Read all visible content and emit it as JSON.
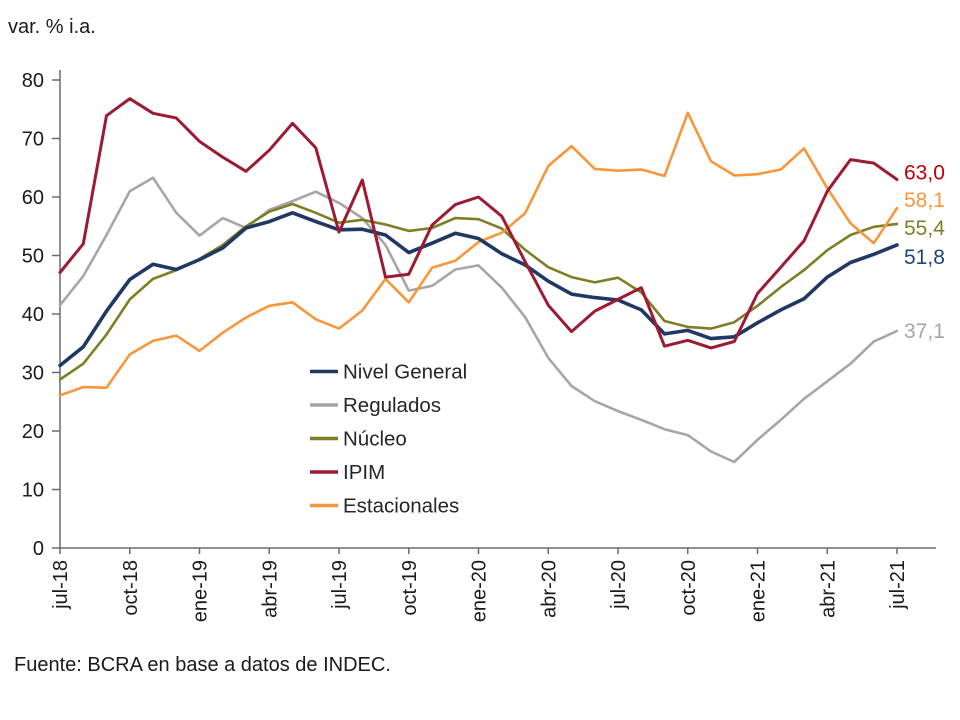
{
  "header": {
    "title": "var. % i.a."
  },
  "footer": {
    "source": "Fuente: BCRA en base a datos de INDEC."
  },
  "chart_data": {
    "type": "line",
    "title": "var. % i.a.",
    "ylabel": "",
    "xlabel": "",
    "ylim": [
      0,
      80
    ],
    "y_ticks": [
      0,
      10,
      20,
      30,
      40,
      50,
      60,
      70,
      80
    ],
    "grid": false,
    "legend_position": "inside-center-left",
    "x": [
      "jul-18",
      "ago-18",
      "sep-18",
      "oct-18",
      "nov-18",
      "dic-18",
      "ene-19",
      "feb-19",
      "mar-19",
      "abr-19",
      "may-19",
      "jun-19",
      "jul-19",
      "ago-19",
      "sep-19",
      "oct-19",
      "nov-19",
      "dic-19",
      "ene-20",
      "feb-20",
      "mar-20",
      "abr-20",
      "may-20",
      "jun-20",
      "jul-20",
      "ago-20",
      "sep-20",
      "oct-20",
      "nov-20",
      "dic-20",
      "ene-21",
      "feb-21",
      "mar-21",
      "abr-21",
      "may-21",
      "jun-21",
      "jul-21"
    ],
    "x_tick_labels": [
      "jul-18",
      "oct-18",
      "ene-19",
      "abr-19",
      "jul-19",
      "oct-19",
      "ene-20",
      "abr-20",
      "jul-20",
      "oct-20",
      "ene-21",
      "abr-21",
      "jul-21"
    ],
    "series": [
      {
        "name": "Nivel General",
        "color": "#1F3864",
        "label_color": "#1F4577",
        "end_label": "51,8",
        "values": [
          31.2,
          34.4,
          40.5,
          45.9,
          48.5,
          47.6,
          49.3,
          51.3,
          54.7,
          55.8,
          57.3,
          55.8,
          54.4,
          54.5,
          53.5,
          50.5,
          52.1,
          53.8,
          52.9,
          50.3,
          48.4,
          45.6,
          43.4,
          42.8,
          42.4,
          40.7,
          36.6,
          37.2,
          35.8,
          36.1,
          38.5,
          40.7,
          42.6,
          46.3,
          48.8,
          50.2,
          51.8
        ]
      },
      {
        "name": "Regulados",
        "color": "#A6A6A6",
        "label_color": "#A6A6A6",
        "end_label": "37,1",
        "values": [
          41.5,
          46.5,
          53.5,
          61.0,
          63.3,
          57.3,
          53.4,
          56.4,
          54.7,
          57.8,
          59.3,
          60.9,
          59.0,
          56.4,
          51.8,
          44.0,
          44.8,
          47.6,
          48.3,
          44.5,
          39.5,
          32.5,
          27.7,
          25.1,
          23.4,
          21.9,
          20.3,
          19.3,
          16.5,
          14.7,
          18.5,
          21.9,
          25.5,
          28.5,
          31.5,
          35.3,
          37.1
        ]
      },
      {
        "name": "Núcleo",
        "color": "#7E7F25",
        "label_color": "#7E7F25",
        "end_label": "55,4",
        "values": [
          28.8,
          31.5,
          36.5,
          42.5,
          46.0,
          47.5,
          49.4,
          51.8,
          55.0,
          57.5,
          58.8,
          57.3,
          55.6,
          56.1,
          55.3,
          54.2,
          54.7,
          56.4,
          56.2,
          54.6,
          51.0,
          48.0,
          46.3,
          45.4,
          46.2,
          43.7,
          38.8,
          37.8,
          37.5,
          38.6,
          41.4,
          44.6,
          47.5,
          50.9,
          53.5,
          54.9,
          55.4
        ]
      },
      {
        "name": "IPIM",
        "color": "#9C1B33",
        "label_color": "#C00000",
        "end_label": "63,0",
        "values": [
          47.1,
          52.0,
          73.9,
          76.8,
          74.3,
          73.5,
          69.5,
          66.8,
          64.4,
          68.0,
          72.6,
          68.4,
          54.0,
          62.9,
          46.3,
          46.8,
          55.2,
          58.7,
          60.0,
          56.7,
          49.0,
          41.5,
          37.0,
          40.5,
          42.5,
          44.5,
          34.5,
          35.5,
          34.2,
          35.3,
          43.5,
          48.0,
          52.5,
          61.0,
          66.4,
          65.8,
          63.0
        ]
      },
      {
        "name": "Estacionales",
        "color": "#F8963D",
        "label_color": "#F8963D",
        "end_label": "58,1",
        "values": [
          26.1,
          27.5,
          27.4,
          33.1,
          35.4,
          36.3,
          33.7,
          36.8,
          39.4,
          41.4,
          42.0,
          39.1,
          37.5,
          40.6,
          46.0,
          42.0,
          47.9,
          49.1,
          52.3,
          53.9,
          57.2,
          65.3,
          68.7,
          64.8,
          64.5,
          64.7,
          63.6,
          74.4,
          66.1,
          63.7,
          63.9,
          64.7,
          68.3,
          61.5,
          55.5,
          52.1,
          58.1
        ]
      }
    ]
  }
}
